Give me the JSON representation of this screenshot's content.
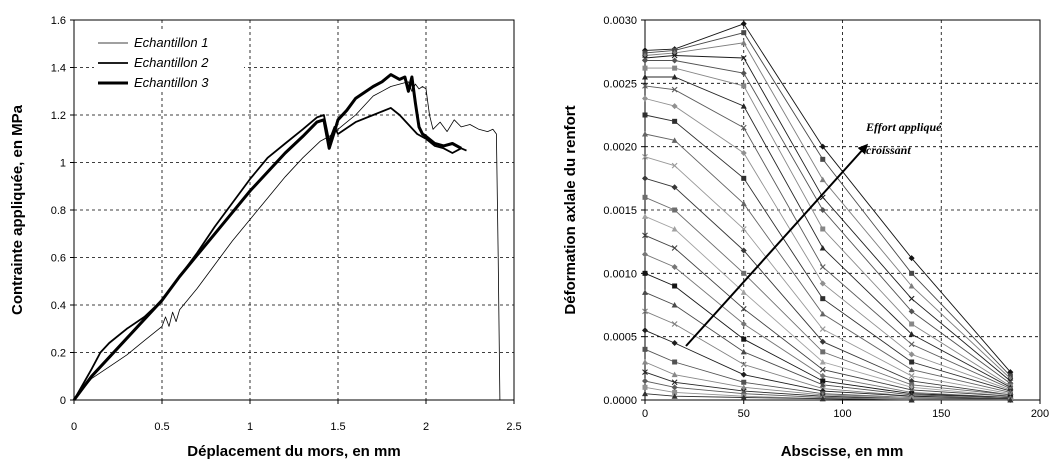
{
  "chart_data": [
    {
      "type": "line",
      "title": "",
      "xlabel": "Déplacement du mors, en mm",
      "ylabel": "Contrainte appliquée, en MPa",
      "xlim": [
        0,
        2.5
      ],
      "ylim": [
        0,
        1.6
      ],
      "x_ticks": [
        "0",
        "0.5",
        "1",
        "1.5",
        "2",
        "2.5"
      ],
      "y_ticks": [
        "0",
        "0.2",
        "0.4",
        "0.6",
        "0.8",
        "1",
        "1.2",
        "1.4",
        "1.6"
      ],
      "grid": true,
      "legend": "top-left",
      "series": [
        {
          "name": "Echantillon 1",
          "points": [
            [
              0,
              0
            ],
            [
              0.1,
              0.09
            ],
            [
              0.2,
              0.14
            ],
            [
              0.3,
              0.19
            ],
            [
              0.4,
              0.25
            ],
            [
              0.5,
              0.31
            ],
            [
              0.52,
              0.35
            ],
            [
              0.54,
              0.31
            ],
            [
              0.56,
              0.37
            ],
            [
              0.58,
              0.33
            ],
            [
              0.6,
              0.38
            ],
            [
              0.7,
              0.47
            ],
            [
              0.8,
              0.57
            ],
            [
              0.9,
              0.67
            ],
            [
              1.0,
              0.76
            ],
            [
              1.1,
              0.85
            ],
            [
              1.2,
              0.94
            ],
            [
              1.3,
              1.02
            ],
            [
              1.4,
              1.09
            ],
            [
              1.45,
              1.11
            ],
            [
              1.5,
              1.14
            ],
            [
              1.55,
              1.17
            ],
            [
              1.6,
              1.2
            ],
            [
              1.65,
              1.24
            ],
            [
              1.7,
              1.28
            ],
            [
              1.75,
              1.3
            ],
            [
              1.8,
              1.32
            ],
            [
              1.85,
              1.33
            ],
            [
              1.9,
              1.34
            ],
            [
              1.92,
              1.3
            ],
            [
              1.94,
              1.33
            ],
            [
              1.96,
              1.31
            ],
            [
              1.98,
              1.32
            ],
            [
              2.0,
              1.31
            ],
            [
              2.02,
              1.2
            ],
            [
              2.04,
              1.14
            ],
            [
              2.08,
              1.17
            ],
            [
              2.12,
              1.13
            ],
            [
              2.16,
              1.18
            ],
            [
              2.2,
              1.15
            ],
            [
              2.25,
              1.16
            ],
            [
              2.3,
              1.14
            ],
            [
              2.35,
              1.13
            ],
            [
              2.38,
              1.14
            ],
            [
              2.4,
              1.12
            ],
            [
              2.41,
              0.6
            ],
            [
              2.42,
              0.0
            ]
          ]
        },
        {
          "name": "Echantillon 2",
          "points": [
            [
              0,
              0
            ],
            [
              0.1,
              0.13
            ],
            [
              0.15,
              0.2
            ],
            [
              0.2,
              0.24
            ],
            [
              0.3,
              0.3
            ],
            [
              0.4,
              0.35
            ],
            [
              0.5,
              0.42
            ],
            [
              0.6,
              0.52
            ],
            [
              0.7,
              0.62
            ],
            [
              0.8,
              0.73
            ],
            [
              0.9,
              0.83
            ],
            [
              1.0,
              0.93
            ],
            [
              1.1,
              1.02
            ],
            [
              1.2,
              1.08
            ],
            [
              1.3,
              1.14
            ],
            [
              1.38,
              1.19
            ],
            [
              1.42,
              1.2
            ],
            [
              1.45,
              1.09
            ],
            [
              1.48,
              1.15
            ],
            [
              1.5,
              1.12
            ],
            [
              1.6,
              1.17
            ],
            [
              1.7,
              1.2
            ],
            [
              1.8,
              1.23
            ],
            [
              1.85,
              1.2
            ],
            [
              1.9,
              1.16
            ],
            [
              1.95,
              1.12
            ],
            [
              2.0,
              1.1
            ],
            [
              2.05,
              1.07
            ],
            [
              2.1,
              1.06
            ],
            [
              2.15,
              1.04
            ],
            [
              2.2,
              1.06
            ],
            [
              2.23,
              1.05
            ]
          ]
        },
        {
          "name": "Echantillon 3",
          "points": [
            [
              0,
              0
            ],
            [
              0.1,
              0.1
            ],
            [
              0.2,
              0.18
            ],
            [
              0.3,
              0.26
            ],
            [
              0.4,
              0.34
            ],
            [
              0.5,
              0.42
            ],
            [
              0.6,
              0.52
            ],
            [
              0.7,
              0.61
            ],
            [
              0.8,
              0.7
            ],
            [
              0.9,
              0.79
            ],
            [
              1.0,
              0.88
            ],
            [
              1.1,
              0.96
            ],
            [
              1.2,
              1.04
            ],
            [
              1.3,
              1.11
            ],
            [
              1.38,
              1.17
            ],
            [
              1.42,
              1.18
            ],
            [
              1.45,
              1.06
            ],
            [
              1.48,
              1.13
            ],
            [
              1.5,
              1.18
            ],
            [
              1.55,
              1.22
            ],
            [
              1.6,
              1.27
            ],
            [
              1.7,
              1.32
            ],
            [
              1.75,
              1.34
            ],
            [
              1.8,
              1.37
            ],
            [
              1.85,
              1.35
            ],
            [
              1.88,
              1.36
            ],
            [
              1.9,
              1.3
            ],
            [
              1.92,
              1.36
            ],
            [
              1.94,
              1.25
            ],
            [
              1.96,
              1.15
            ],
            [
              1.98,
              1.12
            ],
            [
              2.0,
              1.11
            ],
            [
              2.05,
              1.08
            ],
            [
              2.1,
              1.07
            ],
            [
              2.15,
              1.08
            ],
            [
              2.2,
              1.06
            ]
          ]
        }
      ]
    },
    {
      "type": "line",
      "title": "",
      "xlabel": "Abscisse, en mm",
      "ylabel": "Déformation axlale du renfort",
      "xlim": [
        0,
        200
      ],
      "ylim": [
        0,
        0.003
      ],
      "x_ticks": [
        "0",
        "50",
        "100",
        "150",
        "200"
      ],
      "y_ticks": [
        "0.0000",
        "0.0005",
        "0.0010",
        "0.0015",
        "0.0020",
        "0.0025",
        "0.0030"
      ],
      "grid": true,
      "x": [
        0,
        15,
        50,
        90,
        135,
        185
      ],
      "annotation": {
        "text_lines": [
          "Effort appliqué",
          "croissant"
        ]
      },
      "series": [
        {
          "values": [
            0.00276,
            0.00277,
            0.00297,
            0.002,
            0.00112,
            0.00022
          ]
        },
        {
          "values": [
            0.00274,
            0.00276,
            0.0029,
            0.0019,
            0.001,
            0.00019
          ]
        },
        {
          "values": [
            0.00272,
            0.00274,
            0.00282,
            0.00174,
            0.0009,
            0.00017
          ]
        },
        {
          "values": [
            0.0027,
            0.00272,
            0.0027,
            0.0016,
            0.0008,
            0.00015
          ]
        },
        {
          "values": [
            0.00268,
            0.00268,
            0.00258,
            0.0015,
            0.0007,
            0.00013
          ]
        },
        {
          "values": [
            0.00262,
            0.00262,
            0.00248,
            0.00135,
            0.0006,
            0.00011
          ]
        },
        {
          "values": [
            0.00255,
            0.00255,
            0.00232,
            0.0012,
            0.00052,
            0.0001
          ]
        },
        {
          "values": [
            0.00248,
            0.00245,
            0.00215,
            0.00105,
            0.00044,
            9e-05
          ]
        },
        {
          "values": [
            0.00238,
            0.00232,
            0.00195,
            0.00092,
            0.00036,
            8e-05
          ]
        },
        {
          "values": [
            0.00225,
            0.0022,
            0.00175,
            0.0008,
            0.0003,
            7e-05
          ]
        },
        {
          "values": [
            0.0021,
            0.00205,
            0.00155,
            0.00068,
            0.00024,
            6e-05
          ]
        },
        {
          "values": [
            0.00192,
            0.00185,
            0.00135,
            0.00056,
            0.00019,
            5e-05
          ]
        },
        {
          "values": [
            0.00175,
            0.00168,
            0.00118,
            0.00046,
            0.00015,
            4e-05
          ]
        },
        {
          "values": [
            0.0016,
            0.0015,
            0.001,
            0.00038,
            0.00012,
            4e-05
          ]
        },
        {
          "values": [
            0.00145,
            0.00135,
            0.00085,
            0.0003,
            0.0001,
            3e-05
          ]
        },
        {
          "values": [
            0.0013,
            0.0012,
            0.00072,
            0.00024,
            8e-05,
            3e-05
          ]
        },
        {
          "values": [
            0.00115,
            0.00105,
            0.0006,
            0.00019,
            6e-05,
            2e-05
          ]
        },
        {
          "values": [
            0.001,
            0.0009,
            0.00048,
            0.00015,
            5e-05,
            2e-05
          ]
        },
        {
          "values": [
            0.00085,
            0.00075,
            0.00038,
            0.00012,
            4e-05,
            2e-05
          ]
        },
        {
          "values": [
            0.0007,
            0.0006,
            0.00028,
            9e-05,
            3e-05,
            1e-05
          ]
        },
        {
          "values": [
            0.00055,
            0.00045,
            0.0002,
            7e-05,
            3e-05,
            1e-05
          ]
        },
        {
          "values": [
            0.0004,
            0.0003,
            0.00014,
            5e-05,
            2e-05,
            1e-05
          ]
        },
        {
          "values": [
            0.0003,
            0.0002,
            0.0001,
            4e-05,
            2e-05,
            1e-05
          ]
        },
        {
          "values": [
            0.00022,
            0.00014,
            7e-05,
            3e-05,
            1e-05,
            1e-05
          ]
        },
        {
          "values": [
            0.00015,
            0.0001,
            5e-05,
            2e-05,
            1e-05,
            0.0
          ]
        },
        {
          "values": [
            0.0001,
            6e-05,
            3e-05,
            1e-05,
            1e-05,
            0.0
          ]
        },
        {
          "values": [
            5e-05,
            3e-05,
            2e-05,
            1e-05,
            0.0,
            0.0
          ]
        }
      ]
    }
  ]
}
